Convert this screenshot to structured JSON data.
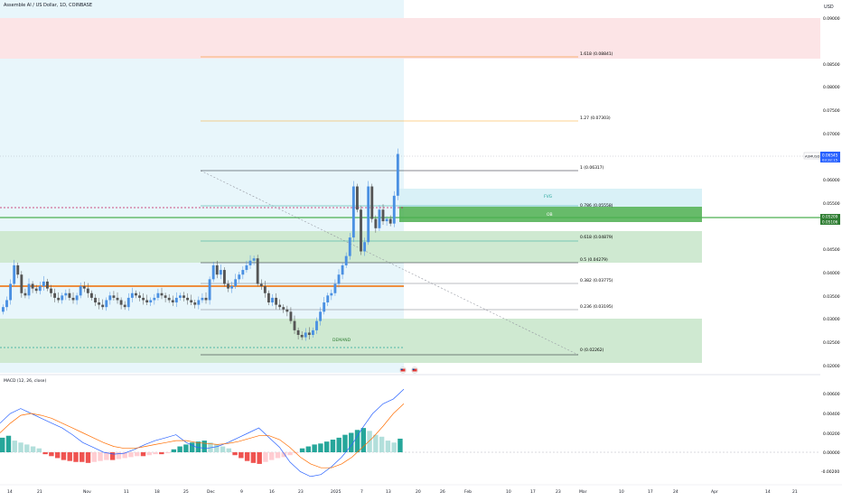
{
  "header": {
    "title": "Assemble AI / US Dollar, 1D, COINBASE",
    "currency": "USD"
  },
  "price_axis": {
    "ticks": [
      "0.09000",
      "0.08500",
      "0.08000",
      "0.07500",
      "0.07000",
      "0.06500",
      "0.06000",
      "0.05500",
      "0.05000",
      "0.04500",
      "0.04000",
      "0.03500",
      "0.03000",
      "0.02500",
      "0.02000"
    ],
    "last_price": "0.06545",
    "countdown": "03:32:15",
    "ob_top": "0.05209",
    "ob_bottom": "0.05106",
    "symbol_tag": "ASMUSD",
    "colors": {
      "last": "#2962ff",
      "ob": "#2e8b57"
    }
  },
  "time_axis": {
    "labels": [
      "14",
      "21",
      "Nov",
      "11",
      "18",
      "25",
      "Dec",
      "9",
      "16",
      "23",
      "2025",
      "7",
      "13",
      "20",
      "26",
      "Feb",
      "10",
      "17",
      "23",
      "Mar",
      "10",
      "17",
      "24",
      "Apr",
      "14",
      "21"
    ]
  },
  "fib_levels": [
    {
      "label": "1.618 (0.08841)",
      "color": "#f57c00"
    },
    {
      "label": "1.27 (0.07303)",
      "color": "#f9a825"
    },
    {
      "label": "1 (0.06317)",
      "color": "#131722"
    },
    {
      "label": "0.786 (0.05558)",
      "color": "#26a69a"
    },
    {
      "label": "0.618 (0.04879)",
      "color": "#26a69a"
    },
    {
      "label": "0.5 (0.04279)",
      "color": "#131722"
    },
    {
      "label": "0.382 (0.03775)",
      "color": "#787b86"
    },
    {
      "label": "0.236 (0.03195)",
      "color": "#787b86"
    },
    {
      "label": "0 (0.02262)",
      "color": "#131722"
    }
  ],
  "zones": {
    "fvg_label": "FVG",
    "ob_label": "OB",
    "demand_label": "DEMAND"
  },
  "macd": {
    "title": "MACD (12, 26, close)",
    "ticks": [
      "0.00600",
      "0.00400",
      "0.00200",
      "0.00000",
      "-0.00200"
    ],
    "colors": {
      "macd": "#2962ff",
      "signal": "#ff6d00",
      "hist_up": "#26a69a",
      "hist_down": "#ef5350"
    }
  }
}
